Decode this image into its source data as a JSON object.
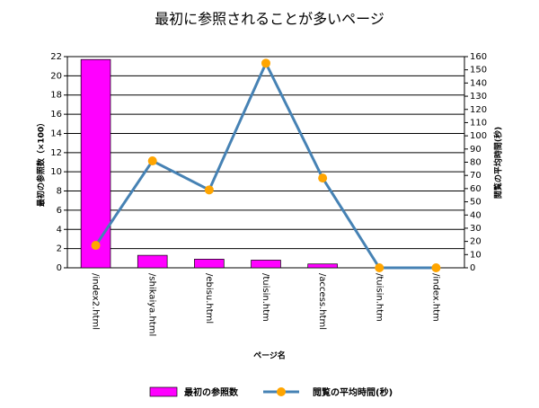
{
  "chart_data": {
    "type": "bar",
    "title": "最初に参照されることが多いページ",
    "x_label": "ページ名",
    "y_label": "最初の参照数（×100）",
    "y2_label": "閲覧の平均時間(秒)",
    "categories": [
      "/index2.html",
      "/shikaiya.html",
      "/ebisu.html",
      "/tuisin.htm",
      "/access.html",
      "/tuisin.htm",
      "/index.htm"
    ],
    "series": [
      {
        "name": "最初の参照数",
        "type": "bar",
        "color": "#ff00ff",
        "values": [
          21.7,
          1.3,
          0.9,
          0.8,
          0.4,
          0,
          0
        ]
      },
      {
        "name": "閲覧の平均時間(秒)",
        "type": "line",
        "axis": "y2",
        "color": "#4682b4",
        "marker_color": "#ffa500",
        "values": [
          17,
          81,
          59,
          155,
          68,
          0,
          0
        ]
      }
    ],
    "ylim": [
      0,
      22
    ],
    "yticks": [
      0,
      2,
      4,
      6,
      8,
      10,
      12,
      14,
      16,
      18,
      20,
      22
    ],
    "y2lim": [
      0,
      160
    ],
    "y2ticks": [
      0,
      10,
      20,
      30,
      40,
      50,
      60,
      70,
      80,
      90,
      100,
      110,
      120,
      130,
      140,
      150,
      160
    ],
    "grid": true
  }
}
